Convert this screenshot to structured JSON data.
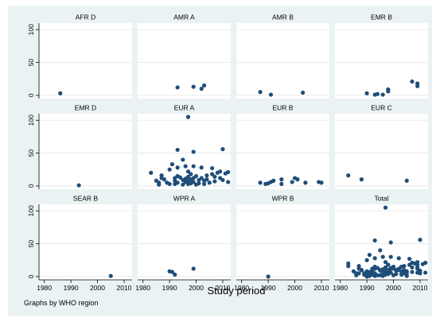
{
  "chart_data": {
    "type": "scatter",
    "layout": "facet-grid 3x4",
    "xlabel": "Study period",
    "ylabel": "",
    "note": "Graphs by WHO region",
    "xlim": [
      1978,
      2013
    ],
    "ylim": [
      -5,
      110
    ],
    "x_ticks": [
      1980,
      1990,
      2000,
      2010
    ],
    "y_ticks": [
      0,
      50,
      100
    ],
    "grid": "horizontal",
    "marker_color": "#1f4e79",
    "panels": [
      {
        "title": "AFR D",
        "points": [
          [
            1986,
            3
          ]
        ]
      },
      {
        "title": "AMR A",
        "points": [
          [
            1993,
            12
          ],
          [
            1999,
            13
          ],
          [
            2002,
            10
          ],
          [
            2003,
            15
          ]
        ]
      },
      {
        "title": "AMR B",
        "points": [
          [
            1987,
            5
          ],
          [
            1991,
            1
          ],
          [
            2003,
            4
          ]
        ]
      },
      {
        "title": "EMR B",
        "points": [
          [
            1990,
            3
          ],
          [
            1993,
            1
          ],
          [
            1994,
            2
          ],
          [
            1996,
            1
          ],
          [
            1998,
            6
          ],
          [
            1998,
            9
          ],
          [
            2007,
            21
          ],
          [
            2009,
            18
          ],
          [
            2009,
            14
          ]
        ]
      },
      {
        "title": "EMR D",
        "points": [
          [
            1993,
            1
          ]
        ]
      },
      {
        "title": "EUR A",
        "points": [
          [
            1983,
            20
          ],
          [
            1985,
            8
          ],
          [
            1986,
            5
          ],
          [
            1986,
            2
          ],
          [
            1987,
            16
          ],
          [
            1987,
            12
          ],
          [
            1988,
            10
          ],
          [
            1989,
            5
          ],
          [
            1990,
            25
          ],
          [
            1990,
            3
          ],
          [
            1991,
            33
          ],
          [
            1992,
            12
          ],
          [
            1992,
            8
          ],
          [
            1992,
            3
          ],
          [
            1993,
            55
          ],
          [
            1993,
            28
          ],
          [
            1993,
            15
          ],
          [
            1993,
            5
          ],
          [
            1994,
            13
          ],
          [
            1995,
            40
          ],
          [
            1995,
            9
          ],
          [
            1995,
            2
          ],
          [
            1996,
            30
          ],
          [
            1996,
            11
          ],
          [
            1996,
            6
          ],
          [
            1997,
            105
          ],
          [
            1997,
            22
          ],
          [
            1997,
            14
          ],
          [
            1997,
            8
          ],
          [
            1997,
            3
          ],
          [
            1998,
            18
          ],
          [
            1998,
            10
          ],
          [
            1998,
            4
          ],
          [
            1999,
            52
          ],
          [
            1999,
            30
          ],
          [
            1999,
            12
          ],
          [
            1999,
            6
          ],
          [
            2000,
            15
          ],
          [
            2000,
            2
          ],
          [
            2001,
            9
          ],
          [
            2001,
            4
          ],
          [
            2002,
            28
          ],
          [
            2002,
            12
          ],
          [
            2003,
            8
          ],
          [
            2003,
            3
          ],
          [
            2004,
            16
          ],
          [
            2004,
            10
          ],
          [
            2005,
            5
          ],
          [
            2006,
            18
          ],
          [
            2006,
            27
          ],
          [
            2007,
            14
          ],
          [
            2007,
            7
          ],
          [
            2008,
            20
          ],
          [
            2009,
            22
          ],
          [
            2009,
            12
          ],
          [
            2010,
            56
          ],
          [
            2010,
            9
          ],
          [
            2011,
            19
          ],
          [
            2012,
            21
          ],
          [
            2012,
            6
          ]
        ]
      },
      {
        "title": "EUR B",
        "points": [
          [
            1987,
            5
          ],
          [
            1989,
            3
          ],
          [
            1990,
            4
          ],
          [
            1991,
            6
          ],
          [
            1992,
            8
          ],
          [
            1995,
            10
          ],
          [
            1995,
            3
          ],
          [
            1999,
            6
          ],
          [
            2000,
            12
          ],
          [
            2001,
            10
          ],
          [
            2004,
            5
          ],
          [
            2009,
            6
          ],
          [
            2010,
            5
          ]
        ]
      },
      {
        "title": "EUR C",
        "points": [
          [
            1983,
            16
          ],
          [
            1988,
            10
          ],
          [
            2005,
            8
          ]
        ]
      },
      {
        "title": "SEAR B",
        "points": [
          [
            2005,
            1
          ]
        ]
      },
      {
        "title": "WPR A",
        "points": [
          [
            1990,
            8
          ],
          [
            1991,
            7
          ],
          [
            1992,
            3
          ],
          [
            1999,
            12
          ]
        ]
      },
      {
        "title": "WPR B",
        "points": [
          [
            1990,
            0
          ]
        ]
      },
      {
        "title": "Total",
        "points": [
          [
            1983,
            20
          ],
          [
            1983,
            16
          ],
          [
            1985,
            8
          ],
          [
            1986,
            5
          ],
          [
            1986,
            3
          ],
          [
            1986,
            2
          ],
          [
            1987,
            16
          ],
          [
            1987,
            12
          ],
          [
            1987,
            5
          ],
          [
            1988,
            10
          ],
          [
            1988,
            10
          ],
          [
            1989,
            5
          ],
          [
            1989,
            3
          ],
          [
            1990,
            25
          ],
          [
            1990,
            8
          ],
          [
            1990,
            3
          ],
          [
            1990,
            4
          ],
          [
            1990,
            0
          ],
          [
            1991,
            33
          ],
          [
            1991,
            7
          ],
          [
            1991,
            6
          ],
          [
            1991,
            1
          ],
          [
            1992,
            12
          ],
          [
            1992,
            8
          ],
          [
            1992,
            3
          ],
          [
            1993,
            55
          ],
          [
            1993,
            28
          ],
          [
            1993,
            15
          ],
          [
            1993,
            12
          ],
          [
            1993,
            5
          ],
          [
            1993,
            1
          ],
          [
            1994,
            13
          ],
          [
            1994,
            2
          ],
          [
            1995,
            40
          ],
          [
            1995,
            10
          ],
          [
            1995,
            9
          ],
          [
            1995,
            2
          ],
          [
            1996,
            30
          ],
          [
            1996,
            11
          ],
          [
            1996,
            6
          ],
          [
            1996,
            1
          ],
          [
            1997,
            105
          ],
          [
            1997,
            22
          ],
          [
            1997,
            14
          ],
          [
            1997,
            8
          ],
          [
            1997,
            3
          ],
          [
            1998,
            18
          ],
          [
            1998,
            10
          ],
          [
            1998,
            9
          ],
          [
            1998,
            6
          ],
          [
            1998,
            4
          ],
          [
            1999,
            52
          ],
          [
            1999,
            30
          ],
          [
            1999,
            13
          ],
          [
            1999,
            12
          ],
          [
            1999,
            6
          ],
          [
            2000,
            15
          ],
          [
            2000,
            12
          ],
          [
            2000,
            2
          ],
          [
            2001,
            10
          ],
          [
            2001,
            9
          ],
          [
            2001,
            4
          ],
          [
            2002,
            28
          ],
          [
            2002,
            12
          ],
          [
            2002,
            10
          ],
          [
            2003,
            15
          ],
          [
            2003,
            8
          ],
          [
            2003,
            4
          ],
          [
            2003,
            3
          ],
          [
            2004,
            16
          ],
          [
            2004,
            10
          ],
          [
            2004,
            5
          ],
          [
            2005,
            8
          ],
          [
            2005,
            5
          ],
          [
            2005,
            1
          ],
          [
            2006,
            18
          ],
          [
            2006,
            27
          ],
          [
            2007,
            21
          ],
          [
            2007,
            14
          ],
          [
            2007,
            7
          ],
          [
            2008,
            20
          ],
          [
            2009,
            22
          ],
          [
            2009,
            18
          ],
          [
            2009,
            14
          ],
          [
            2009,
            12
          ],
          [
            2009,
            6
          ],
          [
            2010,
            56
          ],
          [
            2010,
            9
          ],
          [
            2010,
            5
          ],
          [
            2011,
            19
          ],
          [
            2012,
            21
          ],
          [
            2012,
            6
          ]
        ]
      }
    ]
  }
}
